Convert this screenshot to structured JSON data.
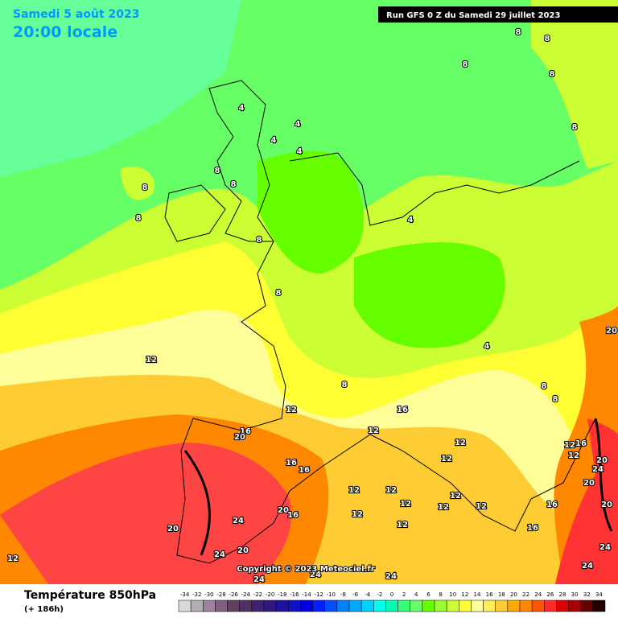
{
  "header": {
    "date": "Samedi 5 août 2023",
    "time": "20:00 locale",
    "run": "Run GFS 0 Z du Samedi 29 juillet 2023"
  },
  "copyright": "Copyright © 2023 Meteociel.fr",
  "footer": {
    "title": "Température 850hPa",
    "lead": "(+ 186h)"
  },
  "legend": {
    "ticks": [
      -34,
      -32,
      -30,
      -28,
      -26,
      -24,
      -22,
      -20,
      -18,
      -16,
      -14,
      -12,
      -10,
      -8,
      -6,
      -4,
      -2,
      0,
      2,
      4,
      6,
      8,
      10,
      12,
      14,
      16,
      18,
      20,
      22,
      24,
      26,
      28,
      30,
      32,
      34
    ],
    "colors": [
      "#d9d9d9",
      "#b0b0b0",
      "#a080a0",
      "#806080",
      "#604060",
      "#503060",
      "#402070",
      "#301880",
      "#2010a0",
      "#1010c0",
      "#0000e0",
      "#0020ff",
      "#0050ff",
      "#0080ff",
      "#00a8ff",
      "#00d0ff",
      "#00ffee",
      "#00ffb0",
      "#33ff77",
      "#66ff66",
      "#66ff00",
      "#99ff33",
      "#ccff33",
      "#ffff33",
      "#ffff99",
      "#ffee55",
      "#ffcc33",
      "#ffaa00",
      "#ff8800",
      "#ff5500",
      "#ff2a2a",
      "#dd0000",
      "#aa0000",
      "#660000",
      "#220000"
    ]
  },
  "contour_labels": [
    "8",
    "8",
    "8",
    "8",
    "4",
    "4",
    "4",
    "4",
    "8",
    "8",
    "4",
    "4",
    "8",
    "8",
    "8",
    "8",
    "8",
    "12",
    "8",
    "12",
    "16",
    "12",
    "16",
    "20",
    "16",
    "16",
    "12",
    "12",
    "12",
    "12",
    "12",
    "12",
    "12",
    "12",
    "12",
    "12",
    "16",
    "16",
    "12",
    "16",
    "12",
    "24",
    "20",
    "20",
    "20",
    "8",
    "8",
    "20",
    "20",
    "16",
    "24",
    "20",
    "20",
    "24",
    "24",
    "24",
    "24",
    "24",
    "24",
    "12"
  ]
}
